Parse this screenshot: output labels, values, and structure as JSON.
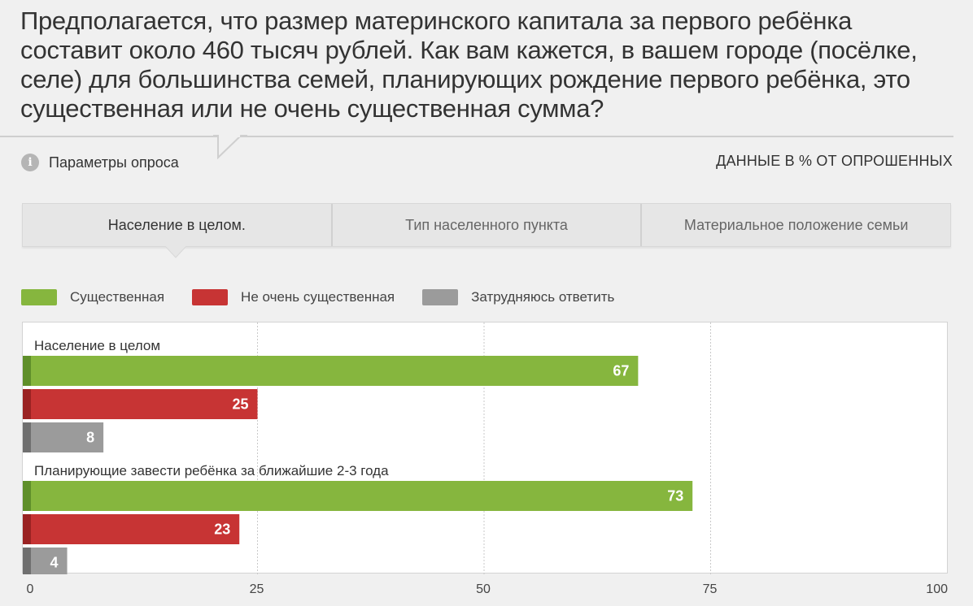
{
  "title": "Предполагается, что размер материнского капитала за первого ребёнка составит около 460 тысяч рублей. Как вам кажется, в вашем городе (посёлке, селе) для большинства семей, планирующих рождение первого ребёнка, это существенная или не очень существенная сумма?",
  "params": {
    "icon": "info-icon",
    "label": "Параметры опроса"
  },
  "units_label": "ДАННЫЕ В % ОТ ОПРОШЕННЫХ",
  "tabs": [
    {
      "label": "Население в целом.",
      "active": true
    },
    {
      "label": "Тип населенного пункта",
      "active": false
    },
    {
      "label": "Материальное положение семьи",
      "active": false
    }
  ],
  "colors": {
    "green": "#86b63e",
    "red": "#c73434",
    "gray": "#9b9b9b",
    "green_dark": "#5f8f2a",
    "red_dark": "#9a2222",
    "gray_dark": "#6f6f6f"
  },
  "chart_data": {
    "type": "bar",
    "orientation": "horizontal",
    "xlim": [
      0,
      100
    ],
    "xticks": [
      0,
      25,
      50,
      75,
      100
    ],
    "grid": true,
    "legend": "top-left",
    "series": [
      {
        "name": "Существенная",
        "color": "#86b63e"
      },
      {
        "name": "Не очень существенная",
        "color": "#c73434"
      },
      {
        "name": "Затрудняюсь ответить",
        "color": "#9b9b9b"
      }
    ],
    "groups": [
      {
        "label": "Население в целом",
        "values": [
          67,
          25,
          8
        ]
      },
      {
        "label": "Планирующие завести ребёнка за ближайшие 2-3 года",
        "values": [
          73,
          23,
          4
        ]
      }
    ]
  }
}
